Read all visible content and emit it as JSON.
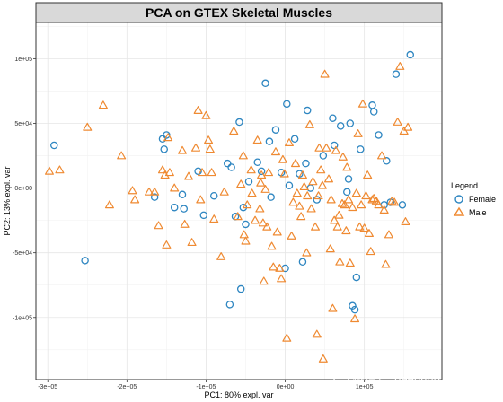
{
  "colors": {
    "female": "#2e86c1",
    "male": "#ef8a32"
  },
  "watermark": {
    "text": "微信号: deephub-imba"
  },
  "chart_data": {
    "type": "scatter",
    "title": "PCA on GTEX Skeletal Muscles",
    "xlabel": "PC1: 80% expl. var",
    "ylabel": "PC2: 13% expl. var",
    "xlim": [
      -315000,
      198000
    ],
    "ylim": [
      -148000,
      128000
    ],
    "x_ticks": [
      -300000,
      -200000,
      -100000,
      0,
      100000
    ],
    "x_tick_labels": [
      "-3e+05",
      "-2e+05",
      "-1e+05",
      "0e+00",
      "1e+05"
    ],
    "y_ticks": [
      -100000,
      -50000,
      0,
      50000,
      100000
    ],
    "y_tick_labels": [
      "-1e+05",
      "-5e+04",
      "0e+00",
      "5e+04",
      "1e+05"
    ],
    "grid": true,
    "legend_title": "Legend",
    "legend_position": "right",
    "series": [
      {
        "name": "Female",
        "marker": "circle",
        "points": [
          [
            -292000,
            33000
          ],
          [
            -253000,
            -56000
          ],
          [
            -165000,
            -7000
          ],
          [
            -155000,
            38000
          ],
          [
            -153000,
            30000
          ],
          [
            -150000,
            41000
          ],
          [
            -140000,
            -15000
          ],
          [
            -130000,
            -5000
          ],
          [
            -128000,
            -16000
          ],
          [
            -110000,
            13000
          ],
          [
            -103000,
            -21000
          ],
          [
            -90000,
            -6000
          ],
          [
            -73000,
            19000
          ],
          [
            -70000,
            -90000
          ],
          [
            -68000,
            16000
          ],
          [
            -63000,
            -22000
          ],
          [
            -58000,
            51000
          ],
          [
            -56000,
            -78000
          ],
          [
            -53000,
            -15000
          ],
          [
            -50000,
            -28000
          ],
          [
            -46000,
            5000
          ],
          [
            -35000,
            20000
          ],
          [
            -30000,
            13000
          ],
          [
            -25000,
            81000
          ],
          [
            -20000,
            36000
          ],
          [
            -18000,
            -7000
          ],
          [
            -12000,
            45000
          ],
          [
            -5000,
            12000
          ],
          [
            0,
            -62000
          ],
          [
            2000,
            65000
          ],
          [
            5000,
            2000
          ],
          [
            12000,
            38000
          ],
          [
            18000,
            11000
          ],
          [
            22000,
            -57000
          ],
          [
            26000,
            19000
          ],
          [
            28000,
            60000
          ],
          [
            32000,
            0
          ],
          [
            40000,
            -9000
          ],
          [
            48000,
            25000
          ],
          [
            60000,
            54000
          ],
          [
            62000,
            33000
          ],
          [
            70000,
            48000
          ],
          [
            78000,
            -3000
          ],
          [
            80000,
            7000
          ],
          [
            82000,
            50000
          ],
          [
            85000,
            -91000
          ],
          [
            88000,
            -94000
          ],
          [
            90000,
            -69000
          ],
          [
            95000,
            30000
          ],
          [
            110000,
            64000
          ],
          [
            112000,
            59000
          ],
          [
            118000,
            41000
          ],
          [
            125000,
            -13000
          ],
          [
            128000,
            21000
          ],
          [
            133000,
            -11000
          ],
          [
            140000,
            88000
          ],
          [
            148000,
            -13000
          ],
          [
            158000,
            103000
          ]
        ]
      },
      {
        "name": "Male",
        "marker": "triangle",
        "points": [
          [
            -298000,
            13000
          ],
          [
            -285000,
            14000
          ],
          [
            -250000,
            47000
          ],
          [
            -230000,
            64000
          ],
          [
            -222000,
            -13000
          ],
          [
            -207000,
            25000
          ],
          [
            -193000,
            -2000
          ],
          [
            -190000,
            -9000
          ],
          [
            -172000,
            -3000
          ],
          [
            -165000,
            -3000
          ],
          [
            -160000,
            -29000
          ],
          [
            -155000,
            14000
          ],
          [
            -152000,
            10000
          ],
          [
            -150000,
            -44000
          ],
          [
            -148000,
            39000
          ],
          [
            -146000,
            12000
          ],
          [
            -140000,
            0
          ],
          [
            -130000,
            29000
          ],
          [
            -127000,
            -28000
          ],
          [
            -122000,
            9000
          ],
          [
            -118000,
            -42000
          ],
          [
            -113000,
            31000
          ],
          [
            -110000,
            60000
          ],
          [
            -107000,
            -9000
          ],
          [
            -105000,
            12000
          ],
          [
            -100000,
            56000
          ],
          [
            -97000,
            37000
          ],
          [
            -95000,
            30000
          ],
          [
            -93000,
            12000
          ],
          [
            -90000,
            -24000
          ],
          [
            -81000,
            -53000
          ],
          [
            -77000,
            -3000
          ],
          [
            -65000,
            44000
          ],
          [
            -60000,
            -22000
          ],
          [
            -56000,
            3000
          ],
          [
            -53000,
            25000
          ],
          [
            -52000,
            -36000
          ],
          [
            -50000,
            -41000
          ],
          [
            -48000,
            -13000
          ],
          [
            -43000,
            14000
          ],
          [
            -42000,
            -4000
          ],
          [
            -38000,
            -25000
          ],
          [
            -35000,
            37000
          ],
          [
            -32000,
            -16000
          ],
          [
            -31000,
            4000
          ],
          [
            -30000,
            10000
          ],
          [
            -28000,
            -27000
          ],
          [
            -27000,
            -72000
          ],
          [
            -25000,
            -1000
          ],
          [
            -23000,
            -30000
          ],
          [
            -21000,
            12000
          ],
          [
            -17000,
            -45000
          ],
          [
            -15000,
            -61000
          ],
          [
            -12000,
            28000
          ],
          [
            -10000,
            -34000
          ],
          [
            -7000,
            -62000
          ],
          [
            -5000,
            -70000
          ],
          [
            -3000,
            22000
          ],
          [
            -1000,
            11000
          ],
          [
            2000,
            -116000
          ],
          [
            5000,
            35000
          ],
          [
            8000,
            -37000
          ],
          [
            10000,
            -11000
          ],
          [
            13000,
            19000
          ],
          [
            15000,
            -4000
          ],
          [
            18000,
            -14000
          ],
          [
            20000,
            -22000
          ],
          [
            22000,
            10000
          ],
          [
            24000,
            1000
          ],
          [
            27000,
            -50000
          ],
          [
            28000,
            -6000
          ],
          [
            31000,
            49000
          ],
          [
            33000,
            -16000
          ],
          [
            35000,
            5000
          ],
          [
            38000,
            -30000
          ],
          [
            40000,
            -113000
          ],
          [
            42000,
            -6000
          ],
          [
            43000,
            31000
          ],
          [
            45000,
            14000
          ],
          [
            47000,
            2000
          ],
          [
            48000,
            -132000
          ],
          [
            50000,
            88000
          ],
          [
            52000,
            31000
          ],
          [
            55000,
            7000
          ],
          [
            57000,
            -47000
          ],
          [
            58000,
            -9000
          ],
          [
            60000,
            -93000
          ],
          [
            62000,
            -25000
          ],
          [
            64000,
            29000
          ],
          [
            66000,
            -30000
          ],
          [
            68000,
            -21000
          ],
          [
            69000,
            -57000
          ],
          [
            72000,
            -12000
          ],
          [
            73000,
            24000
          ],
          [
            75000,
            -13000
          ],
          [
            77000,
            -33000
          ],
          [
            78000,
            16000
          ],
          [
            80000,
            -9000
          ],
          [
            82000,
            -58000
          ],
          [
            85000,
            -15000
          ],
          [
            88000,
            -101000
          ],
          [
            90000,
            -4000
          ],
          [
            92000,
            42000
          ],
          [
            94000,
            -30000
          ],
          [
            96000,
            -13000
          ],
          [
            98000,
            65000
          ],
          [
            100000,
            -31000
          ],
          [
            102000,
            -6000
          ],
          [
            104000,
            10000
          ],
          [
            106000,
            -35000
          ],
          [
            108000,
            -49000
          ],
          [
            110000,
            -9000
          ],
          [
            112000,
            -8000
          ],
          [
            115000,
            -10000
          ],
          [
            118000,
            -13000
          ],
          [
            122000,
            25000
          ],
          [
            125000,
            -17000
          ],
          [
            127000,
            -59000
          ],
          [
            131000,
            -36000
          ],
          [
            135000,
            -10000
          ],
          [
            138000,
            -11000
          ],
          [
            142000,
            51000
          ],
          [
            145000,
            94000
          ],
          [
            150000,
            44000
          ],
          [
            152000,
            -26000
          ],
          [
            155000,
            47000
          ]
        ]
      }
    ]
  }
}
